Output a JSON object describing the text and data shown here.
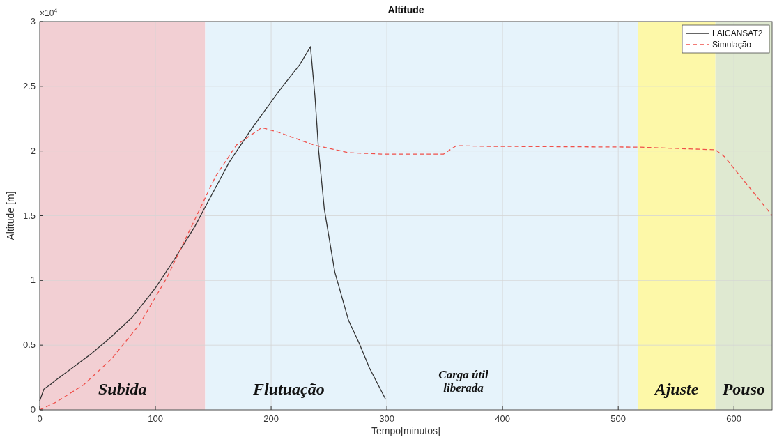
{
  "chart_data": {
    "type": "line",
    "title": "Altitude",
    "xlabel": "Tempo[minutos]",
    "ylabel": "Altitude [m]",
    "xlim": [
      0,
      633
    ],
    "xticks": [
      0,
      100,
      200,
      300,
      400,
      500,
      600
    ],
    "ylim": [
      0,
      3
    ],
    "yticks": [
      0,
      0.5,
      1,
      1.5,
      2,
      2.5,
      3
    ],
    "grid": true,
    "legend": "top right",
    "series": [
      {
        "name": "LAICANSAT2",
        "color": "#333333",
        "line_style": "solid",
        "x": [
          0,
          3.6,
          9,
          14,
          26,
          44,
          62,
          80,
          100,
          116,
          134,
          143,
          164,
          183,
          207,
          225,
          234,
          238,
          241,
          246,
          255,
          267,
          276,
          285,
          299
        ],
        "values": [
          0.07,
          0.16,
          0.194,
          0.23,
          0.31,
          0.43,
          0.565,
          0.716,
          0.942,
          1.158,
          1.416,
          1.567,
          1.917,
          2.17,
          2.466,
          2.671,
          2.806,
          2.41,
          2.009,
          1.55,
          1.066,
          0.689,
          0.517,
          0.323,
          0.081
        ]
      },
      {
        "name": "Simulação",
        "color": "#f0504a",
        "line_style": "dashed",
        "x": [
          0,
          14,
          38,
          62,
          86,
          110,
          134,
          152,
          170,
          192,
          207,
          237,
          267,
          297,
          349,
          360,
          387,
          517,
          584,
          592,
          610,
          633
        ],
        "values": [
          0,
          0.059,
          0.194,
          0.393,
          0.657,
          1.023,
          1.47,
          1.804,
          2.046,
          2.181,
          2.143,
          2.046,
          1.987,
          1.976,
          1.976,
          2.041,
          2.036,
          2.03,
          2.009,
          1.955,
          1.755,
          1.502
        ]
      }
    ],
    "bands": [
      {
        "axis": "x",
        "from": 0,
        "to": 143,
        "label": "Subida",
        "color": "#f2cfd3"
      },
      {
        "axis": "x",
        "from": 143,
        "to": 517,
        "label": "Flutuação",
        "color": "#e6f3fb"
      },
      {
        "axis": "x",
        "from": 517,
        "to": 584,
        "label": "Ajuste",
        "color": "#fdf8a8"
      },
      {
        "axis": "x",
        "from": 584,
        "to": 633,
        "label": "Pouso",
        "color": "#dfe9d1"
      }
    ],
    "annotations": [
      "×10$^{4}$",
      "Carga útil liberada"
    ]
  }
}
